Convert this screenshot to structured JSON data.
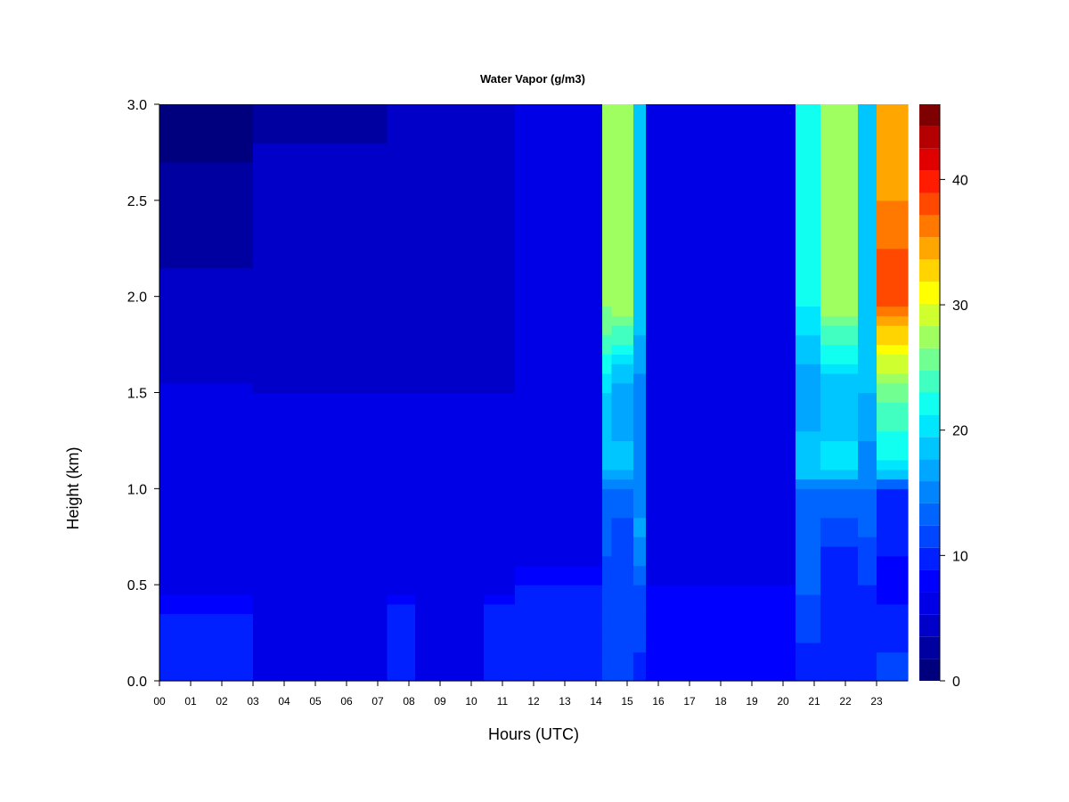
{
  "chart_data": {
    "type": "heatmap",
    "title": "Water Vapor (g/m3)",
    "xlabel": "Hours (UTC)",
    "ylabel": "Height (km)",
    "x_ticks": [
      "00",
      "01",
      "02",
      "03",
      "04",
      "05",
      "06",
      "07",
      "08",
      "09",
      "10",
      "11",
      "12",
      "13",
      "14",
      "15",
      "16",
      "17",
      "18",
      "19",
      "20",
      "21",
      "22",
      "23"
    ],
    "xlim": [
      0,
      24
    ],
    "y_ticks": [
      "0.0",
      "0.5",
      "1.0",
      "1.5",
      "2.0",
      "2.5",
      "3.0"
    ],
    "ylim": [
      0,
      3.0
    ],
    "colorbar": {
      "ticks": [
        "0",
        "10",
        "20",
        "30",
        "40"
      ],
      "range": [
        0,
        46
      ],
      "levels": [
        0,
        2,
        4,
        6,
        8,
        10,
        12,
        14,
        16,
        18,
        20,
        22,
        24,
        26,
        28,
        30,
        32,
        34,
        36,
        38,
        40,
        42,
        44,
        46
      ],
      "colors": [
        "#00007f",
        "#0000a0",
        "#0000c8",
        "#0000e6",
        "#0000ff",
        "#0020ff",
        "#0045ff",
        "#0064ff",
        "#0085ff",
        "#00a6ff",
        "#00c6ff",
        "#00e6ff",
        "#10fff0",
        "#40ffc0",
        "#70ff90",
        "#a0ff60",
        "#d0ff30",
        "#ffff00",
        "#ffd400",
        "#ffa600",
        "#ff7800",
        "#ff4800",
        "#ff1c00",
        "#e00000",
        "#b40000",
        "#7f0000"
      ]
    },
    "profiles": [
      {
        "hours": [
          0.0,
          3.0
        ],
        "values_by_height": [
          [
            0.0,
            10
          ],
          [
            0.35,
            10
          ],
          [
            0.5,
            7
          ],
          [
            1.2,
            7
          ],
          [
            1.9,
            5
          ],
          [
            2.4,
            3
          ],
          [
            3.0,
            1
          ]
        ]
      },
      {
        "hours": [
          3.0,
          7.3
        ],
        "values_by_height": [
          [
            0.0,
            8
          ],
          [
            0.3,
            6
          ],
          [
            0.6,
            6
          ],
          [
            1.5,
            6
          ],
          [
            2.0,
            5
          ],
          [
            2.6,
            5
          ],
          [
            3.0,
            3
          ]
        ]
      },
      {
        "hours": [
          7.3,
          8.2
        ],
        "values_by_height": [
          [
            0.0,
            10
          ],
          [
            0.4,
            10
          ],
          [
            0.5,
            7
          ],
          [
            1.5,
            6
          ],
          [
            2.2,
            5
          ],
          [
            3.0,
            4
          ]
        ]
      },
      {
        "hours": [
          8.2,
          10.4
        ],
        "values_by_height": [
          [
            0.0,
            8
          ],
          [
            0.5,
            7
          ],
          [
            1.5,
            6
          ],
          [
            2.5,
            5
          ],
          [
            3.0,
            4
          ]
        ]
      },
      {
        "hours": [
          10.4,
          11.4
        ],
        "values_by_height": [
          [
            0.0,
            10
          ],
          [
            0.4,
            10
          ],
          [
            0.5,
            7
          ],
          [
            1.5,
            6
          ],
          [
            3.0,
            5
          ]
        ]
      },
      {
        "hours": [
          11.4,
          14.2
        ],
        "values_by_height": [
          [
            0.0,
            10
          ],
          [
            0.5,
            10
          ],
          [
            0.6,
            8
          ],
          [
            1.5,
            7
          ],
          [
            2.5,
            6
          ],
          [
            3.0,
            6
          ]
        ]
      },
      {
        "hours": [
          14.2,
          14.5
        ],
        "values_by_height": [
          [
            0.0,
            12
          ],
          [
            0.5,
            13
          ],
          [
            1.0,
            16
          ],
          [
            1.1,
            20
          ],
          [
            1.5,
            22
          ],
          [
            1.8,
            28
          ],
          [
            2.0,
            31
          ],
          [
            2.5,
            30
          ],
          [
            3.0,
            30
          ]
        ]
      },
      {
        "hours": [
          14.5,
          15.2
        ],
        "values_by_height": [
          [
            0.0,
            12
          ],
          [
            0.5,
            12
          ],
          [
            1.0,
            15
          ],
          [
            1.1,
            21
          ],
          [
            1.5,
            18
          ],
          [
            1.8,
            27
          ],
          [
            2.0,
            32
          ],
          [
            2.5,
            30
          ],
          [
            3.0,
            30
          ]
        ]
      },
      {
        "hours": [
          15.2,
          15.6
        ],
        "values_by_height": [
          [
            0.0,
            11
          ],
          [
            0.5,
            14
          ],
          [
            0.8,
            19
          ],
          [
            1.0,
            16
          ],
          [
            1.5,
            17
          ],
          [
            2.0,
            22
          ],
          [
            3.0,
            20
          ]
        ]
      },
      {
        "hours": [
          15.6,
          20.4
        ],
        "values_by_height": [
          [
            0.0,
            9
          ],
          [
            0.5,
            8
          ],
          [
            1.0,
            7
          ],
          [
            1.5,
            8
          ],
          [
            2.0,
            6
          ],
          [
            3.0,
            6
          ]
        ]
      },
      {
        "hours": [
          20.4,
          21.2
        ],
        "values_by_height": [
          [
            0.0,
            10
          ],
          [
            0.3,
            13
          ],
          [
            0.6,
            15
          ],
          [
            1.0,
            16
          ],
          [
            1.1,
            22
          ],
          [
            1.5,
            18
          ],
          [
            2.0,
            25
          ],
          [
            3.0,
            24
          ]
        ]
      },
      {
        "hours": [
          21.2,
          22.4
        ],
        "values_by_height": [
          [
            0.0,
            10
          ],
          [
            0.3,
            12
          ],
          [
            0.6,
            11
          ],
          [
            1.0,
            16
          ],
          [
            1.1,
            23
          ],
          [
            1.5,
            20
          ],
          [
            2.0,
            32
          ],
          [
            2.5,
            30
          ],
          [
            3.0,
            30
          ]
        ]
      },
      {
        "hours": [
          22.4,
          23.0
        ],
        "values_by_height": [
          [
            0.0,
            11
          ],
          [
            0.5,
            12
          ],
          [
            1.0,
            16
          ],
          [
            1.5,
            20
          ],
          [
            2.0,
            22
          ],
          [
            3.0,
            20
          ]
        ]
      },
      {
        "hours": [
          23.0,
          24.0
        ],
        "values_by_height": [
          [
            0.0,
            13
          ],
          [
            0.5,
            9
          ],
          [
            1.0,
            12
          ],
          [
            1.1,
            23
          ],
          [
            1.5,
            29
          ],
          [
            1.8,
            37
          ],
          [
            2.0,
            44
          ],
          [
            2.5,
            40
          ],
          [
            3.0,
            38
          ]
        ]
      }
    ]
  }
}
